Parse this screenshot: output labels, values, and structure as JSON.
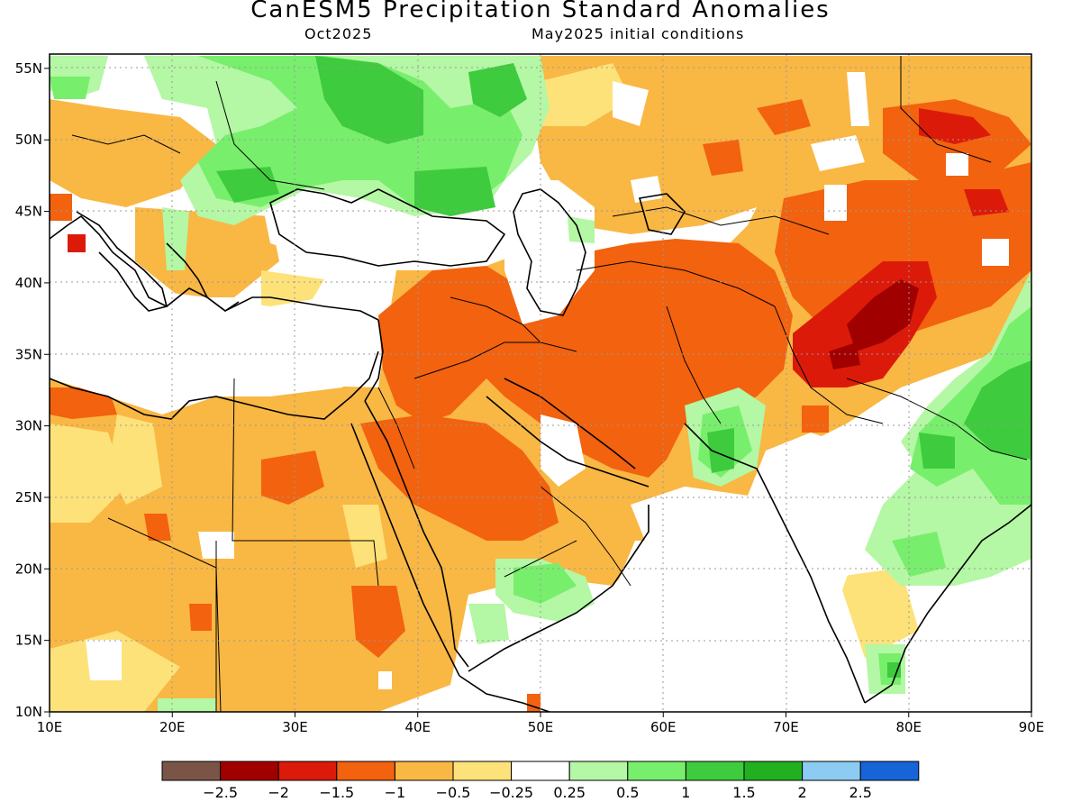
{
  "title": "CanESM5 Precipitation Standard Anomalies",
  "subtitle_left": "Oct2025",
  "subtitle_right": "May2025 initial conditions",
  "map": {
    "lon_range": [
      10,
      90
    ],
    "lat_range": [
      10,
      56
    ],
    "lon_ticks": [
      "10E",
      "20E",
      "30E",
      "40E",
      "50E",
      "60E",
      "70E",
      "80E",
      "90E"
    ],
    "lat_ticks": [
      "10N",
      "15N",
      "20N",
      "25N",
      "30N",
      "35N",
      "40N",
      "45N",
      "50N",
      "55N"
    ],
    "grid": "dotted",
    "region": "Middle East, Central and South Asia, Eastern Europe, Northeast Africa"
  },
  "colorbar": {
    "colors": [
      "#7a5547",
      "#a10000",
      "#dc1a0a",
      "#f2620f",
      "#f9b744",
      "#fde27a",
      "#ffffff",
      "#b4f7a4",
      "#78ee6d",
      "#3ecb3e",
      "#22b020",
      "#8cccf2",
      "#1664d8"
    ],
    "labels": [
      "-2.5",
      "-2",
      "-1.5",
      "-1",
      "-0.5",
      "-0.25",
      "0.25",
      "0.5",
      "1",
      "1.5",
      "2",
      "2.5"
    ]
  },
  "colors": {
    "strong_dry": "#a10000",
    "dry": "#f2620f",
    "mild_dry": "#f9b744",
    "slight_dry": "#fde27a",
    "neutral": "#ffffff",
    "slight_wet": "#b4f7a4",
    "wet": "#78ee6d",
    "very_wet": "#3ecb3e"
  }
}
